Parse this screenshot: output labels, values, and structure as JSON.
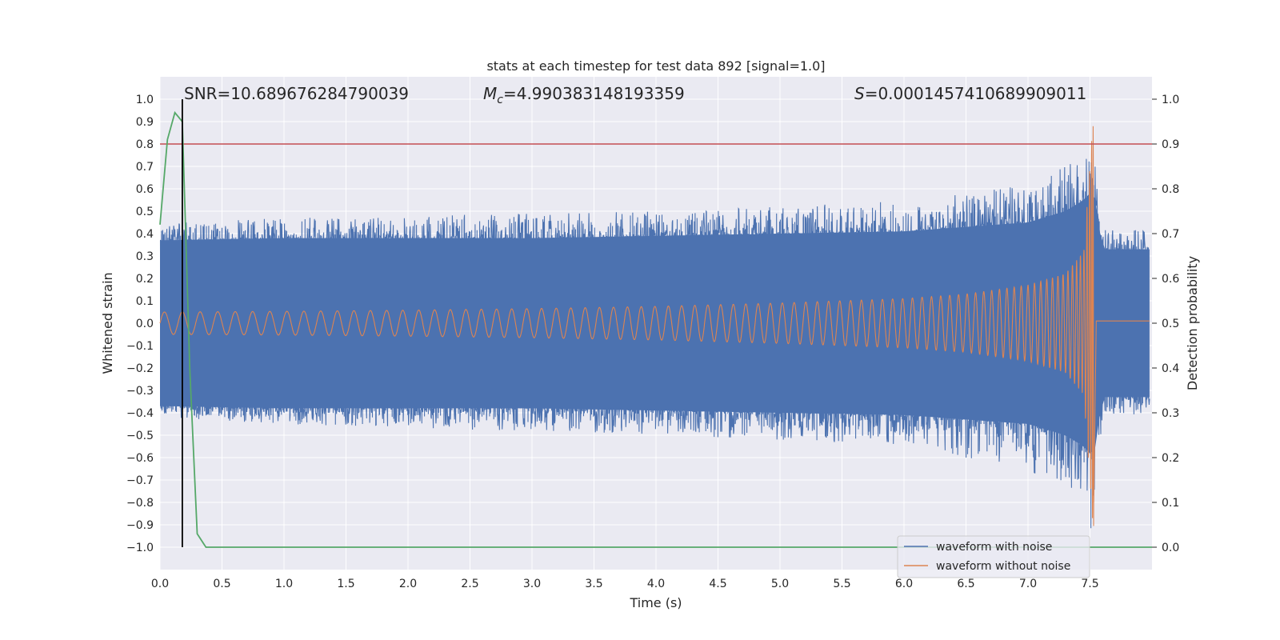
{
  "chart_data": {
    "type": "line",
    "title": "stats at each timestep for test data 892 [signal=1.0]",
    "xlabel": "Time (s)",
    "ylabel": "Whitened strain",
    "y2label": "Detection probability",
    "xlim": [
      0.0,
      8.0
    ],
    "ylim": [
      -1.1,
      1.1
    ],
    "y2lim": [
      -0.05,
      1.05
    ],
    "xticks": [
      "0.0",
      "0.5",
      "1.0",
      "1.5",
      "2.0",
      "2.5",
      "3.0",
      "3.5",
      "4.0",
      "4.5",
      "5.0",
      "5.5",
      "6.0",
      "6.5",
      "7.0",
      "7.5"
    ],
    "yticks": [
      "1.0",
      "0.9",
      "0.8",
      "0.7",
      "0.6",
      "0.5",
      "0.4",
      "0.3",
      "0.2",
      "0.1",
      "0.0",
      "−0.1",
      "−0.2",
      "−0.3",
      "−0.4",
      "−0.5",
      "−0.6",
      "−0.7",
      "−0.8",
      "−0.9",
      "−1.0"
    ],
    "y2ticks": [
      "1.0",
      "0.9",
      "0.8",
      "0.7",
      "0.6",
      "0.5",
      "0.4",
      "0.3",
      "0.2",
      "0.1",
      "0.0"
    ],
    "annotations": {
      "snr": "SNR=10.689676284790039",
      "mc_symbol": "M",
      "mc_sub": "c",
      "mc_value": "=4.990383148193359",
      "s_symbol": "S",
      "s_value": "=0.0001457410689909011"
    },
    "threshold_probability": 0.9,
    "marker_time": 0.18,
    "merger_time": 7.53,
    "series": [
      {
        "name": "waveform with noise",
        "color": "#4c72b0",
        "envelope": {
          "t": [
            0.0,
            1.0,
            2.0,
            3.0,
            4.0,
            5.0,
            6.0,
            6.5,
            7.0,
            7.3,
            7.45,
            7.53,
            7.6,
            8.0
          ],
          "upper": [
            0.45,
            0.47,
            0.48,
            0.49,
            0.5,
            0.52,
            0.55,
            0.58,
            0.62,
            0.7,
            0.82,
            0.9,
            0.42,
            0.42
          ],
          "lower": [
            -0.42,
            -0.45,
            -0.47,
            -0.48,
            -0.5,
            -0.52,
            -0.55,
            -0.6,
            -0.67,
            -0.72,
            -0.8,
            -1.0,
            -0.42,
            -0.4
          ],
          "core_upper": [
            0.37,
            0.38,
            0.38,
            0.38,
            0.39,
            0.4,
            0.41,
            0.43,
            0.45,
            0.5,
            0.55,
            0.6,
            0.33,
            0.33
          ],
          "core_lower": [
            -0.37,
            -0.38,
            -0.38,
            -0.38,
            -0.39,
            -0.4,
            -0.41,
            -0.43,
            -0.45,
            -0.5,
            -0.55,
            -0.6,
            -0.33,
            -0.33
          ]
        }
      },
      {
        "name": "waveform without noise",
        "color": "#dd8452",
        "envelope": {
          "t": [
            0.0,
            1.0,
            2.0,
            3.0,
            4.0,
            5.0,
            6.0,
            6.5,
            7.0,
            7.3,
            7.45,
            7.53
          ],
          "amplitude": [
            0.05,
            0.053,
            0.058,
            0.065,
            0.075,
            0.09,
            0.11,
            0.13,
            0.17,
            0.22,
            0.32,
            0.95
          ]
        }
      },
      {
        "name": "detection probability",
        "color": "#55a868",
        "axis": "right",
        "x": [
          0.0,
          0.06,
          0.12,
          0.18,
          0.24,
          0.3,
          0.37,
          8.0
        ],
        "y": [
          0.72,
          0.91,
          0.97,
          0.95,
          0.4,
          0.03,
          0.0,
          0.0
        ]
      }
    ]
  }
}
